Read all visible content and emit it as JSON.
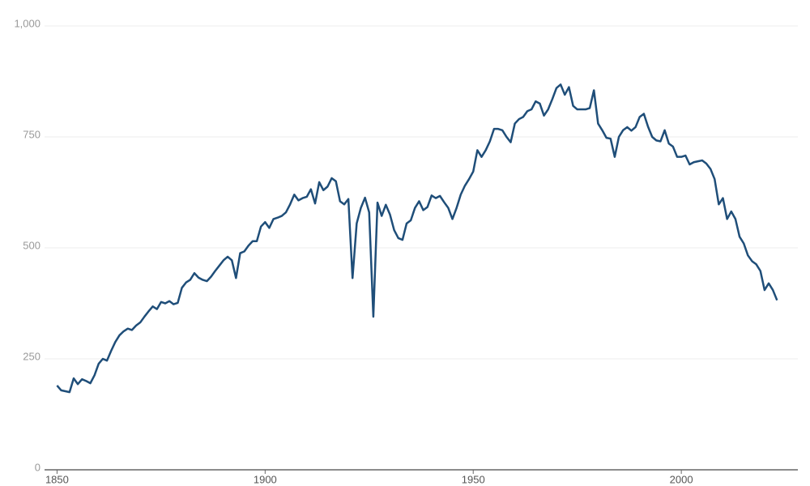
{
  "chart_data": {
    "type": "line",
    "x": [
      1850,
      1851,
      1852,
      1853,
      1854,
      1855,
      1856,
      1857,
      1858,
      1859,
      1860,
      1861,
      1862,
      1863,
      1864,
      1865,
      1866,
      1867,
      1868,
      1869,
      1870,
      1871,
      1872,
      1873,
      1874,
      1875,
      1876,
      1877,
      1878,
      1879,
      1880,
      1881,
      1882,
      1883,
      1884,
      1885,
      1886,
      1887,
      1888,
      1889,
      1890,
      1891,
      1892,
      1893,
      1894,
      1895,
      1896,
      1897,
      1898,
      1899,
      1900,
      1901,
      1902,
      1903,
      1904,
      1905,
      1906,
      1907,
      1908,
      1909,
      1910,
      1911,
      1912,
      1913,
      1914,
      1915,
      1916,
      1917,
      1918,
      1919,
      1920,
      1921,
      1922,
      1923,
      1924,
      1925,
      1926,
      1927,
      1928,
      1929,
      1930,
      1931,
      1932,
      1933,
      1934,
      1935,
      1936,
      1937,
      1938,
      1939,
      1940,
      1941,
      1942,
      1943,
      1944,
      1945,
      1946,
      1947,
      1948,
      1949,
      1950,
      1951,
      1952,
      1953,
      1954,
      1955,
      1956,
      1957,
      1958,
      1959,
      1960,
      1961,
      1962,
      1963,
      1964,
      1965,
      1966,
      1967,
      1968,
      1969,
      1970,
      1971,
      1972,
      1973,
      1974,
      1975,
      1976,
      1977,
      1978,
      1979,
      1980,
      1981,
      1982,
      1983,
      1984,
      1985,
      1986,
      1987,
      1988,
      1989,
      1990,
      1991,
      1992,
      1993,
      1994,
      1995,
      1996,
      1997,
      1998,
      1999,
      2000,
      2001,
      2002,
      2003,
      2004,
      2005,
      2006,
      2007,
      2008,
      2009,
      2010,
      2011,
      2012,
      2013,
      2014,
      2015,
      2016,
      2017,
      2018,
      2019,
      2020,
      2021,
      2022,
      2023
    ],
    "series": [
      {
        "color": "#1f4e79",
        "values": [
          190,
          179,
          177,
          175,
          206,
          193,
          204,
          200,
          195,
          213,
          239,
          250,
          246,
          268,
          288,
          303,
          312,
          318,
          315,
          325,
          332,
          345,
          357,
          368,
          362,
          378,
          375,
          380,
          373,
          376,
          410,
          422,
          428,
          443,
          433,
          428,
          425,
          435,
          448,
          460,
          472,
          480,
          472,
          432,
          488,
          492,
          505,
          515,
          515,
          548,
          558,
          545,
          565,
          568,
          572,
          580,
          598,
          620,
          607,
          612,
          615,
          632,
          600,
          648,
          630,
          638,
          657,
          650,
          605,
          598,
          610,
          432,
          555,
          590,
          613,
          580,
          345,
          602,
          572,
          597,
          575,
          540,
          522,
          518,
          555,
          562,
          590,
          605,
          585,
          592,
          618,
          612,
          617,
          603,
          590,
          565,
          590,
          620,
          640,
          655,
          672,
          720,
          705,
          720,
          740,
          768,
          768,
          765,
          750,
          738,
          780,
          790,
          795,
          808,
          812,
          830,
          825,
          798,
          812,
          835,
          860,
          868,
          845,
          862,
          820,
          812,
          812,
          812,
          815,
          855,
          780,
          765,
          748,
          746,
          705,
          750,
          765,
          772,
          764,
          772,
          795,
          802,
          773,
          750,
          742,
          740,
          765,
          735,
          728,
          705,
          705,
          708,
          688,
          693,
          695,
          697,
          690,
          678,
          655,
          598,
          612,
          565,
          582,
          565,
          525,
          510,
          483,
          470,
          463,
          448,
          405,
          420,
          405,
          382
        ]
      }
    ],
    "xlim": [
      1847,
      2028
    ],
    "xticks": [
      1850,
      1900,
      1950,
      2000
    ],
    "ylim": [
      0,
      1000
    ],
    "yticks": [
      0,
      250,
      500,
      750,
      {
        "value": 1000,
        "label": "1,000"
      }
    ],
    "grid": true
  }
}
